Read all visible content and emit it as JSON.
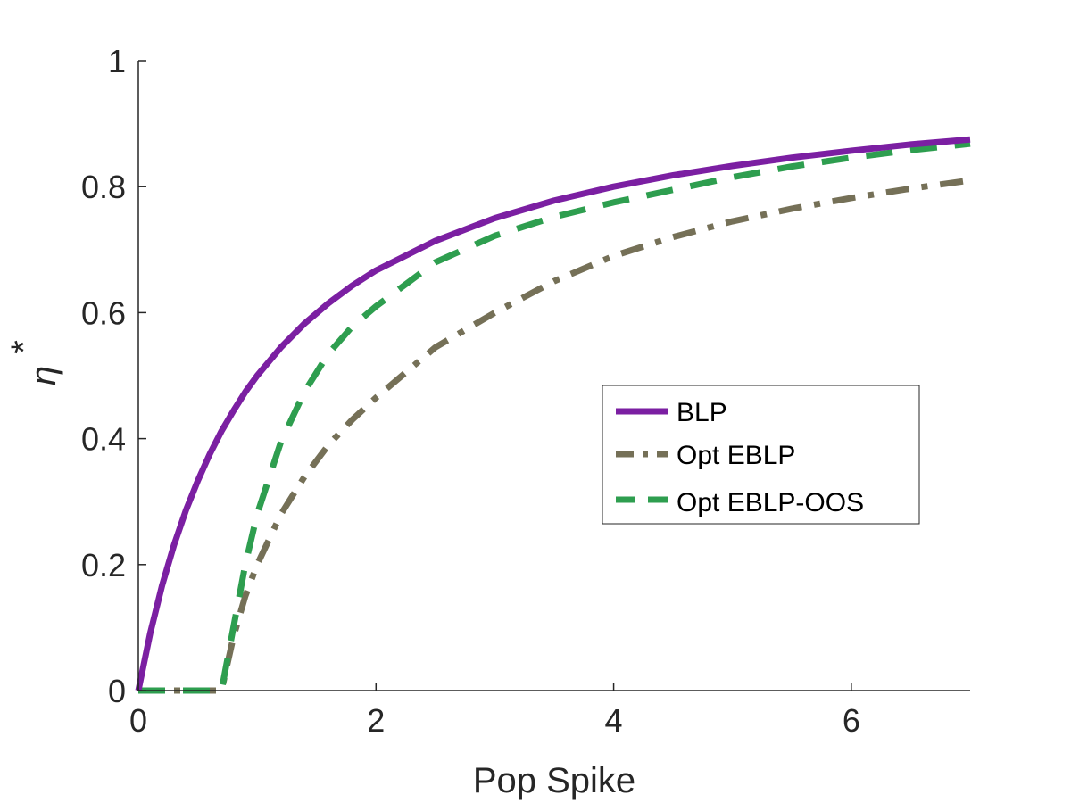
{
  "chart_data": {
    "type": "line",
    "xlabel": "Pop Spike",
    "ylabel": "η",
    "ylabel_superscript": "*",
    "xlim": [
      0,
      7
    ],
    "ylim": [
      0,
      1
    ],
    "x_ticks": [
      0,
      2,
      4,
      6
    ],
    "y_ticks": [
      0,
      0.2,
      0.4,
      0.6,
      0.8,
      1
    ],
    "x_tick_labels": [
      "0",
      "2",
      "4",
      "6"
    ],
    "y_tick_labels": [
      "0",
      "0.2",
      "0.4",
      "0.6",
      "0.8",
      "1"
    ],
    "grid": false,
    "legend_position": "right",
    "series": [
      {
        "name": "BLP",
        "style": "solid",
        "color": "#7b1fa2",
        "x": [
          0,
          0.1,
          0.2,
          0.3,
          0.4,
          0.5,
          0.6,
          0.7,
          0.8,
          0.9,
          1.0,
          1.2,
          1.4,
          1.6,
          1.8,
          2.0,
          2.5,
          3.0,
          3.5,
          4.0,
          4.5,
          5.0,
          5.5,
          6.0,
          6.5,
          7.0
        ],
        "values": [
          0,
          0.091,
          0.167,
          0.231,
          0.286,
          0.333,
          0.375,
          0.412,
          0.444,
          0.474,
          0.5,
          0.545,
          0.583,
          0.615,
          0.643,
          0.667,
          0.714,
          0.75,
          0.778,
          0.8,
          0.818,
          0.833,
          0.846,
          0.857,
          0.867,
          0.875
        ]
      },
      {
        "name": "Opt EBLP",
        "style": "dashdot",
        "color": "#757057",
        "x": [
          0,
          0.7,
          0.8,
          0.9,
          1.0,
          1.2,
          1.4,
          1.6,
          1.8,
          2.0,
          2.5,
          3.0,
          3.5,
          4.0,
          4.5,
          5.0,
          5.5,
          6.0,
          6.5,
          7.0
        ],
        "values": [
          0,
          0,
          0.085,
          0.15,
          0.2,
          0.28,
          0.34,
          0.39,
          0.43,
          0.465,
          0.545,
          0.6,
          0.65,
          0.69,
          0.72,
          0.745,
          0.765,
          0.782,
          0.797,
          0.81
        ]
      },
      {
        "name": "Opt EBLP-OOS",
        "style": "dashed",
        "color": "#2e9e4f",
        "x": [
          0,
          0.7,
          0.8,
          0.9,
          1.0,
          1.2,
          1.4,
          1.6,
          1.8,
          2.0,
          2.5,
          3.0,
          3.5,
          4.0,
          4.5,
          5.0,
          5.5,
          6.0,
          6.5,
          7.0
        ],
        "values": [
          0,
          0,
          0.1,
          0.2,
          0.28,
          0.395,
          0.475,
          0.535,
          0.578,
          0.61,
          0.68,
          0.722,
          0.752,
          0.775,
          0.795,
          0.815,
          0.832,
          0.846,
          0.858,
          0.868
        ]
      }
    ]
  }
}
